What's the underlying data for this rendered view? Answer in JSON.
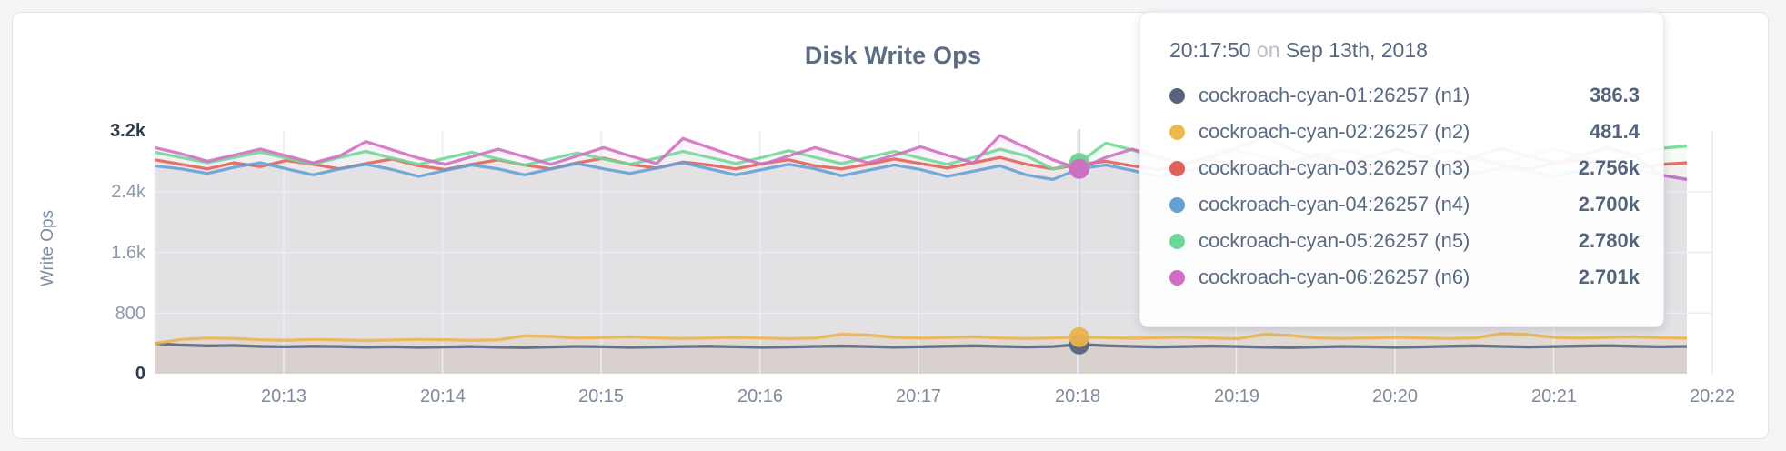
{
  "accent_colors": {
    "page_bg": "#f5f5f7",
    "card_border": "#e4e4e8",
    "gridline": "#ececf1",
    "hover_line": "#d6d9de",
    "title_color": "#5b6b85"
  },
  "chart_data": {
    "type": "line",
    "title": "Disk Write Ops",
    "ylabel": "Write Ops",
    "ylim": [
      0,
      3200
    ],
    "grid": "on",
    "legend_position": "none (values shown in hover tooltip)",
    "x_start": "20:12:00",
    "x_step_seconds": 10,
    "x_date": "Sep 13th, 2018",
    "hover_index": 35,
    "hover_time": "20:17:50",
    "x_ticks": [
      "20:13",
      "20:14",
      "20:15",
      "20:16",
      "20:17",
      "20:18",
      "20:19",
      "20:20",
      "20:21",
      "20:22"
    ],
    "y_ticks": [
      {
        "value": 0,
        "label": "0",
        "strong": true
      },
      {
        "value": 800,
        "label": "800",
        "strong": false
      },
      {
        "value": 1600,
        "label": "1.6k",
        "strong": false
      },
      {
        "value": 2400,
        "label": "2.4k",
        "strong": false
      },
      {
        "value": 3200,
        "label": "3.2k",
        "strong": true
      }
    ],
    "series": [
      {
        "name": "cockroach-cyan-01:26257 (n1)",
        "color": "#57637e",
        "fill_opacity": 0.08,
        "hover_value_label": "386.3",
        "values": [
          400,
          378,
          368,
          372,
          360,
          355,
          362,
          358,
          350,
          355,
          348,
          352,
          358,
          350,
          345,
          352,
          360,
          355,
          348,
          352,
          358,
          362,
          355,
          348,
          352,
          360,
          365,
          358,
          350,
          355,
          362,
          368,
          360,
          352,
          358,
          386.3,
          370,
          360,
          352,
          358,
          365,
          358,
          350,
          345,
          352,
          360,
          355,
          348,
          354,
          362,
          368,
          360,
          352,
          358,
          365,
          370,
          362,
          355,
          360
        ]
      },
      {
        "name": "cockroach-cyan-02:26257 (n2)",
        "color": "#e8b44e",
        "fill_opacity": 0.13,
        "hover_value_label": "481.4",
        "values": [
          398,
          452,
          470,
          465,
          448,
          440,
          452,
          445,
          438,
          445,
          452,
          448,
          440,
          446,
          500,
          492,
          470,
          478,
          485,
          472,
          465,
          472,
          480,
          470,
          462,
          470,
          520,
          510,
          480,
          470,
          478,
          486,
          472,
          465,
          472,
          481.4,
          476,
          468,
          475,
          482,
          470,
          462,
          520,
          505,
          472,
          465,
          472,
          480,
          472,
          464,
          472,
          530,
          515,
          478,
          470,
          478,
          486,
          475,
          468
        ]
      },
      {
        "name": "cockroach-cyan-03:26257 (n3)",
        "color": "#e0605c",
        "fill_opacity": 0.08,
        "hover_value_label": "2.756k",
        "values": [
          2820,
          2760,
          2700,
          2780,
          2730,
          2810,
          2760,
          2700,
          2770,
          2830,
          2740,
          2690,
          2760,
          2820,
          2750,
          2700,
          2780,
          2840,
          2760,
          2710,
          2790,
          2750,
          2700,
          2770,
          2820,
          2740,
          2700,
          2760,
          2830,
          2770,
          2710,
          2780,
          2850,
          2760,
          2700,
          2756,
          2800,
          2740,
          2690,
          2770,
          2830,
          2750,
          2700,
          2780,
          2900,
          2780,
          2710,
          2770,
          2720,
          2790,
          2840,
          2750,
          2700,
          2770,
          2820,
          2740,
          2700,
          2760,
          2780
        ]
      },
      {
        "name": "cockroach-cyan-04:26257 (n4)",
        "color": "#62a0d6",
        "fill_opacity": 0.08,
        "hover_value_label": "2.700k",
        "values": [
          2740,
          2700,
          2640,
          2720,
          2780,
          2700,
          2620,
          2700,
          2760,
          2690,
          2600,
          2680,
          2750,
          2700,
          2620,
          2700,
          2770,
          2700,
          2640,
          2710,
          2780,
          2700,
          2620,
          2690,
          2760,
          2700,
          2610,
          2680,
          2750,
          2690,
          2600,
          2670,
          2740,
          2620,
          2560,
          2700,
          2750,
          2680,
          2600,
          2670,
          2740,
          2700,
          2630,
          2700,
          2770,
          2700,
          2620,
          2690,
          2760,
          2700,
          2640,
          2710,
          2680,
          2600,
          2680,
          2750,
          2700,
          2620,
          2560
        ]
      },
      {
        "name": "cockroach-cyan-05:26257 (n5)",
        "color": "#6fd795",
        "fill_opacity": 0.08,
        "hover_value_label": "2.780k",
        "values": [
          2920,
          2850,
          2780,
          2850,
          2920,
          2840,
          2760,
          2850,
          2930,
          2840,
          2760,
          2840,
          2920,
          2830,
          2750,
          2830,
          2910,
          2830,
          2760,
          2840,
          2930,
          2850,
          2770,
          2850,
          2940,
          2850,
          2770,
          2850,
          2930,
          2840,
          2760,
          2850,
          2960,
          2870,
          2700,
          2780,
          3040,
          2950,
          2840,
          2760,
          2850,
          2940,
          2850,
          2770,
          2860,
          2950,
          2860,
          2780,
          2860,
          2950,
          2860,
          2780,
          2870,
          2960,
          2870,
          2790,
          2880,
          2970,
          3000
        ]
      },
      {
        "name": "cockroach-cyan-06:26257 (n6)",
        "color": "#d06dc2",
        "fill_opacity": 0.08,
        "hover_value_label": "2.701k",
        "values": [
          2980,
          2900,
          2800,
          2880,
          2960,
          2870,
          2780,
          2870,
          3060,
          2950,
          2840,
          2760,
          2860,
          2960,
          2860,
          2760,
          2870,
          2980,
          2870,
          2770,
          3100,
          2980,
          2860,
          2760,
          2870,
          2980,
          2880,
          2780,
          2880,
          2990,
          2880,
          2780,
          3140,
          2980,
          2820,
          2701,
          2850,
          2960,
          2860,
          2760,
          2870,
          2980,
          3120,
          2960,
          2840,
          2760,
          2860,
          2960,
          2860,
          2760,
          2870,
          2970,
          2870,
          2780,
          2880,
          2980,
          2880,
          2620,
          2560
        ]
      }
    ]
  },
  "tooltip": {
    "time": "20:17:50",
    "conj": "on",
    "date": "Sep 13th, 2018",
    "rows": [
      {
        "label": "cockroach-cyan-01:26257 (n1)",
        "value": "386.3",
        "color": "#57637e"
      },
      {
        "label": "cockroach-cyan-02:26257 (n2)",
        "value": "481.4",
        "color": "#ecb94a"
      },
      {
        "label": "cockroach-cyan-03:26257 (n3)",
        "value": "2.756k",
        "color": "#e0605c"
      },
      {
        "label": "cockroach-cyan-04:26257 (n4)",
        "value": "2.700k",
        "color": "#62a0d6"
      },
      {
        "label": "cockroach-cyan-05:26257 (n5)",
        "value": "2.780k",
        "color": "#6fd795"
      },
      {
        "label": "cockroach-cyan-06:26257 (n6)",
        "value": "2.701k",
        "color": "#d06dc2"
      }
    ]
  }
}
